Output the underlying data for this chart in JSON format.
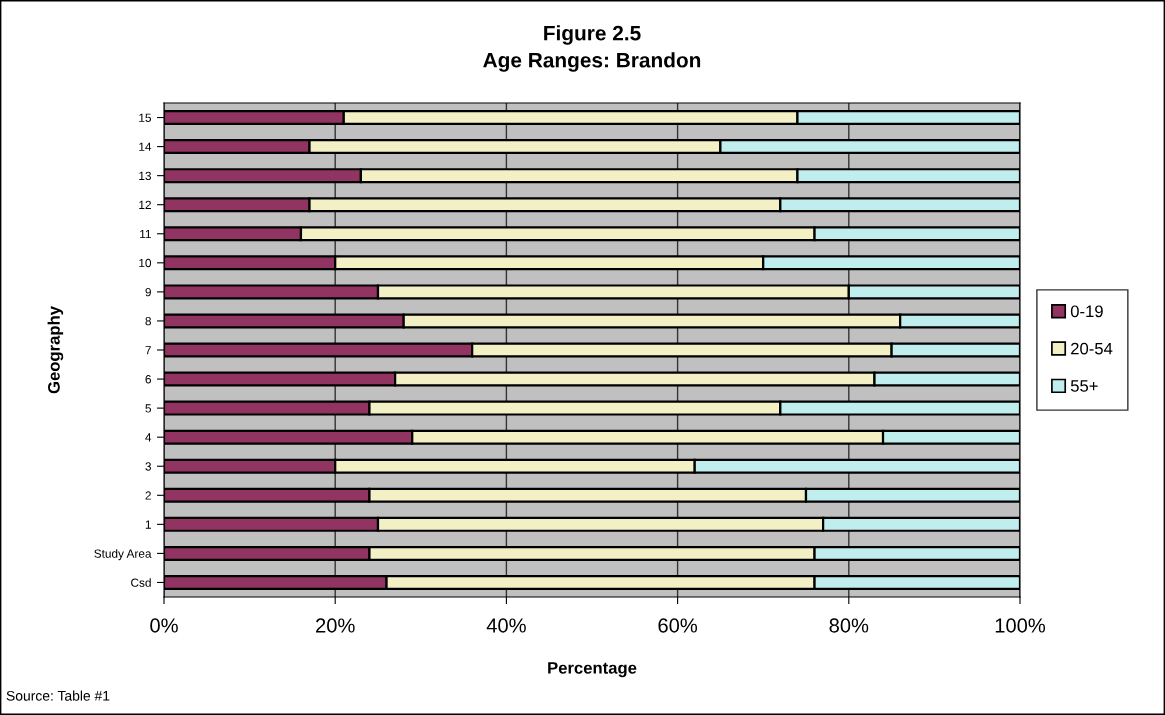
{
  "chart_data": {
    "type": "bar",
    "title": "Figure 2.5",
    "subtitle": "Age Ranges: Brandon",
    "xlabel": "Percentage",
    "ylabel": "Geography",
    "annotations": [
      "Source: Table #1"
    ],
    "orientation": "horizontal",
    "stacked": true,
    "categories": [
      "15",
      "14",
      "13",
      "12",
      "11",
      "10",
      "9",
      "8",
      "7",
      "6",
      "5",
      "4",
      "3",
      "2",
      "1",
      "Study Area",
      "Csd"
    ],
    "series": [
      {
        "name": "0-19",
        "color": "#923462",
        "values": [
          21,
          17,
          23,
          17,
          16,
          20,
          25,
          28,
          36,
          27,
          24,
          29,
          20,
          24,
          25,
          24,
          26
        ]
      },
      {
        "name": "20-54",
        "color": "#f2f0c4",
        "values": [
          53,
          48,
          51,
          55,
          60,
          50,
          55,
          58,
          49,
          56,
          48,
          55,
          42,
          51,
          52,
          52,
          50
        ]
      },
      {
        "name": "55+",
        "color": "#c0eeee",
        "values": [
          26,
          35,
          26,
          28,
          24,
          30,
          20,
          14,
          15,
          17,
          28,
          16,
          38,
          25,
          23,
          24,
          24
        ]
      }
    ],
    "xlim": [
      0,
      100
    ],
    "xticks": [
      {
        "value": 0,
        "label": "0%"
      },
      {
        "value": 20,
        "label": "20%"
      },
      {
        "value": 40,
        "label": "40%"
      },
      {
        "value": 60,
        "label": "60%"
      },
      {
        "value": 80,
        "label": "80%"
      },
      {
        "value": 100,
        "label": "100%"
      }
    ],
    "grid": "x",
    "legend": "right"
  }
}
